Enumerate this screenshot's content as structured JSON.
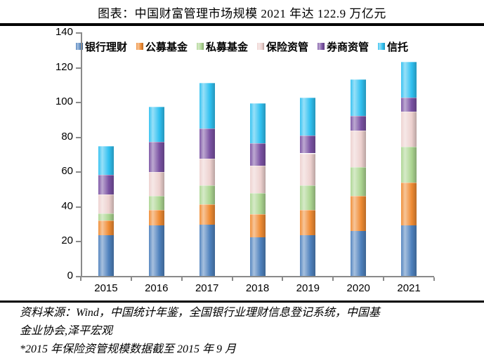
{
  "title": "图表：中国财富管理市场规模 2021 年达 122.9 万亿元",
  "chart_data": {
    "type": "bar",
    "stacked": true,
    "title": "中国财富管理市场规模 2021 年达 122.9 万亿元",
    "unit": "万亿元",
    "categories": [
      "2015",
      "2016",
      "2017",
      "2018",
      "2019",
      "2020",
      "2021"
    ],
    "series": [
      {
        "name": "银行理财",
        "color": "#4E81BD",
        "values": [
          23.5,
          29.1,
          29.5,
          22.0,
          23.4,
          25.9,
          29.0
        ]
      },
      {
        "name": "公募基金",
        "color": "#EF8B33",
        "values": [
          8.4,
          8.8,
          11.5,
          13.5,
          14.5,
          19.9,
          24.8
        ]
      },
      {
        "name": "私募基金",
        "color": "#ACD591",
        "values": [
          4.0,
          8.0,
          11.2,
          12.2,
          14.2,
          16.9,
          20.6
        ]
      },
      {
        "name": "保险资管",
        "color": "#EDD1CF",
        "values": [
          11.0,
          13.7,
          15.3,
          15.5,
          18.3,
          20.9,
          20.2
        ]
      },
      {
        "name": "券商资管",
        "color": "#7A52A3",
        "values": [
          11.3,
          17.6,
          17.3,
          13.1,
          10.4,
          8.3,
          7.9
        ]
      },
      {
        "name": "信托",
        "color": "#30C0F0",
        "values": [
          16.5,
          20.0,
          26.1,
          22.9,
          21.7,
          20.9,
          20.4
        ]
      }
    ],
    "totals": [
      74.7,
      97.2,
      110.9,
      99.2,
      102.5,
      112.8,
      122.9
    ],
    "xlabel": "",
    "ylabel": "",
    "ylim": [
      0,
      140
    ],
    "yticks": [
      0,
      20,
      40,
      60,
      80,
      100,
      120,
      140
    ],
    "grid": false,
    "legend_position": "top"
  },
  "footer": {
    "lines": [
      "资料来源：Wind，中国统计年鉴，全国银行业理财信息登记系统，中国基",
      "金业协会,泽平宏观",
      "*2015 年保险资管规模数据截至 2015 年 9 月"
    ]
  }
}
